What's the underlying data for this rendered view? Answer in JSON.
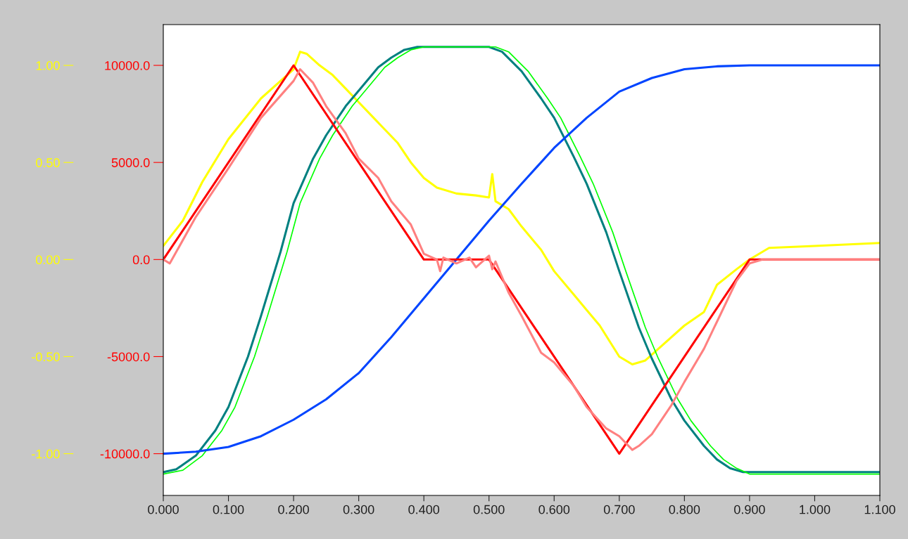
{
  "chart_data": {
    "type": "line",
    "xlim": [
      0,
      1.1
    ],
    "xticks": [
      {
        "value": 0,
        "label": "0.000"
      },
      {
        "value": 0.1,
        "label": "0.100"
      },
      {
        "value": 0.2,
        "label": "0.200"
      },
      {
        "value": 0.3,
        "label": "0.300"
      },
      {
        "value": 0.4,
        "label": "0.400"
      },
      {
        "value": 0.5,
        "label": "0.500"
      },
      {
        "value": 0.6,
        "label": "0.600"
      },
      {
        "value": 0.7,
        "label": "0.700"
      },
      {
        "value": 0.8,
        "label": "0.800"
      },
      {
        "value": 0.9,
        "label": "0.900"
      },
      {
        "value": 1.0,
        "label": "1.000"
      },
      {
        "value": 1.1,
        "label": "1.100"
      }
    ],
    "ylim": [
      -12150,
      12100
    ],
    "yticks": [
      {
        "value": -10000,
        "label": "-10000.0"
      },
      {
        "value": -5000,
        "label": "-5000.0"
      },
      {
        "value": 0,
        "label": "0.0"
      },
      {
        "value": 5000,
        "label": "5000.0"
      },
      {
        "value": 10000,
        "label": "10000.0"
      }
    ],
    "y2lim": [
      -1.215,
      1.21
    ],
    "y2ticks": [
      {
        "value": -1,
        "label": "-1.00"
      },
      {
        "value": -0.5,
        "label": "-0.50"
      },
      {
        "value": 0,
        "label": "0.00"
      },
      {
        "value": 0.5,
        "label": "0.50"
      },
      {
        "value": 1,
        "label": "1.00"
      }
    ],
    "grid": false,
    "marker": "none",
    "line_style": "solid",
    "series": [
      {
        "color": "#008080",
        "x": [
          0,
          0.02,
          0.05,
          0.08,
          0.1,
          0.13,
          0.15,
          0.18,
          0.2,
          0.23,
          0.25,
          0.28,
          0.3,
          0.33,
          0.35,
          0.37,
          0.39,
          0.5,
          0.52,
          0.55,
          0.58,
          0.6,
          0.63,
          0.65,
          0.68,
          0.7,
          0.73,
          0.75,
          0.78,
          0.8,
          0.83,
          0.85,
          0.87,
          0.89,
          1.1
        ],
        "values": [
          -10950,
          -10800,
          -10100,
          -8800,
          -7600,
          -5000,
          -2900,
          400,
          2900,
          5200,
          6400,
          7900,
          8700,
          9900,
          10400,
          10800,
          10950,
          10950,
          10700,
          9700,
          8300,
          7300,
          5300,
          3900,
          1400,
          -600,
          -3500,
          -5100,
          -7200,
          -8300,
          -9600,
          -10300,
          -10750,
          -10950,
          -10950
        ]
      },
      {
        "color": "#00ff00",
        "x": [
          0,
          0.03,
          0.06,
          0.09,
          0.11,
          0.14,
          0.16,
          0.19,
          0.21,
          0.24,
          0.26,
          0.29,
          0.31,
          0.34,
          0.36,
          0.38,
          0.4,
          0.51,
          0.53,
          0.56,
          0.59,
          0.61,
          0.64,
          0.66,
          0.69,
          0.71,
          0.74,
          0.76,
          0.79,
          0.81,
          0.84,
          0.86,
          0.88,
          0.9,
          1.1
        ],
        "values": [
          -11050,
          -10850,
          -10100,
          -8800,
          -7600,
          -5000,
          -2900,
          400,
          2900,
          5200,
          6400,
          7900,
          8700,
          9900,
          10400,
          10800,
          10950,
          10950,
          10700,
          9700,
          8300,
          7300,
          5300,
          3900,
          1400,
          -600,
          -3500,
          -5100,
          -7200,
          -8300,
          -9600,
          -10300,
          -10750,
          -11050,
          -11050
        ]
      },
      {
        "color": "#0044ff",
        "x": [
          0,
          0.05,
          0.1,
          0.15,
          0.2,
          0.25,
          0.3,
          0.35,
          0.4,
          0.45,
          0.5,
          0.55,
          0.6,
          0.65,
          0.7,
          0.75,
          0.8,
          0.85,
          0.9,
          1.1
        ],
        "values": [
          -10000,
          -9900,
          -9650,
          -9100,
          -8250,
          -7200,
          -5850,
          -4000,
          -2000,
          0,
          2000,
          3900,
          5750,
          7300,
          8650,
          9350,
          9800,
          9950,
          10000,
          10000
        ]
      },
      {
        "color": "#ff0000",
        "x": [
          0,
          0.2,
          0.4,
          0.5,
          0.7,
          0.9,
          1.1
        ],
        "values": [
          0,
          10000,
          0,
          0,
          -10000,
          0,
          0
        ]
      },
      {
        "color": "#ff8080",
        "x": [
          0,
          0.01,
          0.05,
          0.1,
          0.15,
          0.2,
          0.21,
          0.23,
          0.25,
          0.28,
          0.3,
          0.33,
          0.35,
          0.38,
          0.4,
          0.42,
          0.425,
          0.43,
          0.45,
          0.47,
          0.48,
          0.5,
          0.505,
          0.51,
          0.53,
          0.55,
          0.58,
          0.6,
          0.63,
          0.65,
          0.68,
          0.7,
          0.72,
          0.73,
          0.75,
          0.78,
          0.8,
          0.83,
          0.85,
          0.88,
          0.9,
          0.92,
          1.1
        ],
        "values": [
          0,
          -200,
          2200,
          4700,
          7300,
          9200,
          9800,
          9100,
          7900,
          6500,
          5200,
          4200,
          3000,
          1800,
          300,
          0,
          -600,
          100,
          -200,
          100,
          -400,
          200,
          -500,
          -100,
          -1700,
          -2900,
          -4800,
          -5300,
          -6500,
          -7600,
          -8700,
          -9100,
          -9800,
          -9600,
          -9000,
          -7500,
          -6300,
          -4600,
          -3200,
          -1100,
          -200,
          0,
          0
        ]
      },
      {
        "color": "#ffff00",
        "axis": "y2",
        "x": [
          0,
          0.03,
          0.06,
          0.1,
          0.15,
          0.2,
          0.21,
          0.22,
          0.24,
          0.26,
          0.28,
          0.3,
          0.32,
          0.34,
          0.36,
          0.38,
          0.4,
          0.42,
          0.45,
          0.48,
          0.5,
          0.505,
          0.51,
          0.53,
          0.55,
          0.58,
          0.6,
          0.63,
          0.65,
          0.67,
          0.7,
          0.72,
          0.74,
          0.76,
          0.8,
          0.83,
          0.85,
          0.88,
          0.9,
          0.93,
          1.0,
          1.1
        ],
        "values": [
          0.07,
          0.2,
          0.4,
          0.62,
          0.83,
          0.98,
          1.07,
          1.06,
          1.0,
          0.95,
          0.88,
          0.81,
          0.74,
          0.67,
          0.6,
          0.5,
          0.42,
          0.37,
          0.34,
          0.33,
          0.32,
          0.44,
          0.3,
          0.26,
          0.17,
          0.05,
          -0.06,
          -0.18,
          -0.26,
          -0.34,
          -0.5,
          -0.54,
          -0.52,
          -0.46,
          -0.34,
          -0.27,
          -0.13,
          -0.05,
          0.0,
          0.06,
          0.07,
          0.085
        ]
      }
    ]
  }
}
